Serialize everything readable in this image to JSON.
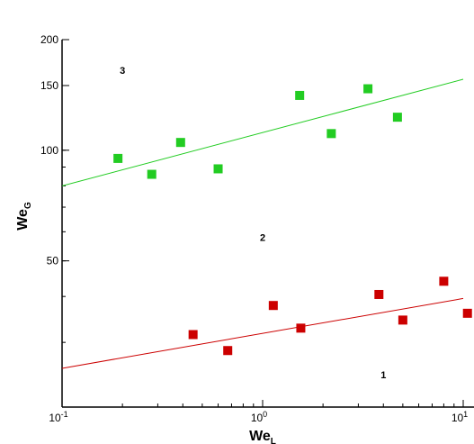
{
  "chart_data": {
    "type": "scatter",
    "title": "",
    "xscale": "log",
    "yscale": "log",
    "xlim": [
      0.1,
      10
    ],
    "ylim": [
      20,
      200
    ],
    "grid": false,
    "xlabel": {
      "main": "We",
      "sub": "L"
    },
    "ylabel": {
      "main": "We",
      "sub": "G"
    },
    "x_ticks": [
      {
        "value": 0.1,
        "base": "10",
        "exp": "-1"
      },
      {
        "value": 1,
        "base": "10",
        "exp": "0"
      },
      {
        "value": 10,
        "base": "10",
        "exp": "1"
      }
    ],
    "y_ticks": [
      {
        "value": 50,
        "label": "50"
      },
      {
        "value": 100,
        "label": "100"
      },
      {
        "value": 150,
        "label": "150"
      },
      {
        "value": 200,
        "label": "200"
      }
    ],
    "series": [
      {
        "color": "#22cc22",
        "points": [
          [
            0.19,
            95
          ],
          [
            0.28,
            86
          ],
          [
            0.39,
            105
          ],
          [
            0.6,
            89
          ],
          [
            1.53,
            141
          ],
          [
            2.2,
            111
          ],
          [
            3.35,
            147
          ],
          [
            4.7,
            123
          ]
        ],
        "fit": [
          [
            0.1,
            80
          ],
          [
            10,
            156
          ]
        ]
      },
      {
        "color": "#cc0000",
        "points": [
          [
            0.45,
            31.5
          ],
          [
            0.67,
            28.5
          ],
          [
            1.13,
            37.8
          ],
          [
            1.55,
            32.8
          ],
          [
            3.8,
            40.5
          ],
          [
            5.0,
            34.5
          ],
          [
            8.0,
            44.0
          ],
          [
            10.5,
            36.0
          ]
        ],
        "fit": [
          [
            0.1,
            25.5
          ],
          [
            10,
            39.5
          ]
        ]
      }
    ],
    "annotations": [
      {
        "text": "3",
        "x": 0.2,
        "y": 165
      },
      {
        "text": "2",
        "x": 1.0,
        "y": 58
      },
      {
        "text": "1",
        "x": 4.0,
        "y": 24.5
      }
    ]
  }
}
